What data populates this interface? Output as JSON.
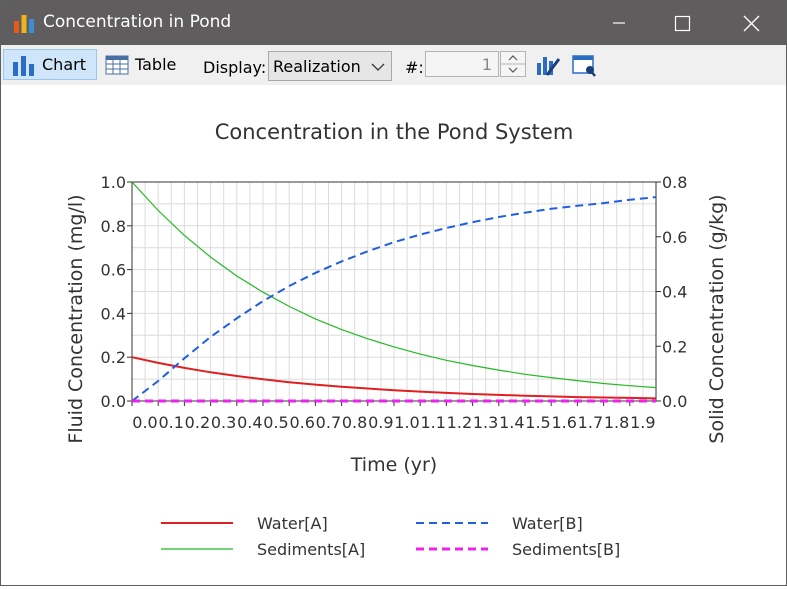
{
  "window": {
    "title": "Concentration in Pond",
    "icons": {
      "app": "bar-chart-app-icon",
      "minimize": "minimize-icon",
      "maximize": "maximize-icon",
      "close": "close-icon"
    }
  },
  "toolbar": {
    "chart_label": "Chart",
    "table_label": "Table",
    "display_label": "Display:",
    "display_value": "Realization",
    "number_label": "#:",
    "number_value": "1",
    "icons": {
      "chart": "bar-chart-icon",
      "table": "table-icon",
      "dropdown": "chevron-down-icon",
      "edit": "chart-edit-icon",
      "settings": "window-settings-icon"
    }
  },
  "colors": {
    "water_a": "#e02020",
    "sediments_a": "#22bb22",
    "water_b": "#1f5fe0",
    "sediments_b": "#ee22ee",
    "titlebar": "#5f5d5d"
  },
  "chart_data": {
    "type": "line",
    "title": "Concentration in the Pond System",
    "xlabel": "Time (yr)",
    "ylabel_left": "Fluid Concentration (mg/l)",
    "ylabel_right": "Solid Concentration (g/kg)",
    "xlim": [
      0,
      2.0
    ],
    "ylim_left": [
      0,
      1.0
    ],
    "ylim_right": [
      0,
      0.8
    ],
    "x_ticks": [
      "0.0",
      "0.1",
      "0.2",
      "0.3",
      "0.4",
      "0.5",
      "0.6",
      "0.7",
      "0.8",
      "0.9",
      "1.0",
      "1.1",
      "1.2",
      "1.3",
      "1.4",
      "1.5",
      "1.6",
      "1.7",
      "1.8",
      "1.9"
    ],
    "y_ticks_left": [
      "0.0",
      "0.2",
      "0.4",
      "0.6",
      "0.8",
      "1.0"
    ],
    "y_ticks_right": [
      "0.0",
      "0.2",
      "0.4",
      "0.6",
      "0.8"
    ],
    "grid": true,
    "legend_position": "bottom",
    "x": [
      0.0,
      0.1,
      0.2,
      0.3,
      0.4,
      0.5,
      0.6,
      0.7,
      0.8,
      0.9,
      1.0,
      1.1,
      1.2,
      1.3,
      1.4,
      1.5,
      1.6,
      1.7,
      1.8,
      1.9,
      2.0
    ],
    "series": [
      {
        "name": "Water[A]",
        "axis": "left",
        "style": "solid",
        "values": [
          0.2,
          0.174,
          0.151,
          0.131,
          0.114,
          0.099,
          0.086,
          0.075,
          0.065,
          0.057,
          0.049,
          0.043,
          0.037,
          0.032,
          0.028,
          0.024,
          0.021,
          0.018,
          0.016,
          0.014,
          0.012
        ]
      },
      {
        "name": "Sediments[A]",
        "axis": "left",
        "style": "solid",
        "values": [
          1.0,
          0.87,
          0.756,
          0.657,
          0.571,
          0.497,
          0.432,
          0.375,
          0.326,
          0.284,
          0.247,
          0.214,
          0.186,
          0.162,
          0.141,
          0.122,
          0.107,
          0.093,
          0.08,
          0.07,
          0.061
        ]
      },
      {
        "name": "Water[B]",
        "axis": "right",
        "style": "dashed",
        "values": [
          0.0,
          0.073,
          0.156,
          0.234,
          0.302,
          0.365,
          0.42,
          0.468,
          0.51,
          0.547,
          0.58,
          0.608,
          0.632,
          0.653,
          0.672,
          0.688,
          0.702,
          0.713,
          0.723,
          0.735,
          0.745
        ]
      },
      {
        "name": "Sediments[B]",
        "axis": "right",
        "style": "dashed",
        "values": [
          0.0,
          0.0,
          0.0,
          0.0,
          0.0,
          0.0,
          0.0,
          0.0,
          0.0,
          0.0,
          0.0,
          0.0,
          0.0,
          0.0,
          0.0,
          0.0,
          0.0,
          0.0,
          0.0,
          0.0,
          0.0
        ]
      }
    ],
    "legend": [
      "Water[A]",
      "Water[B]",
      "Sediments[A]",
      "Sediments[B]"
    ]
  }
}
